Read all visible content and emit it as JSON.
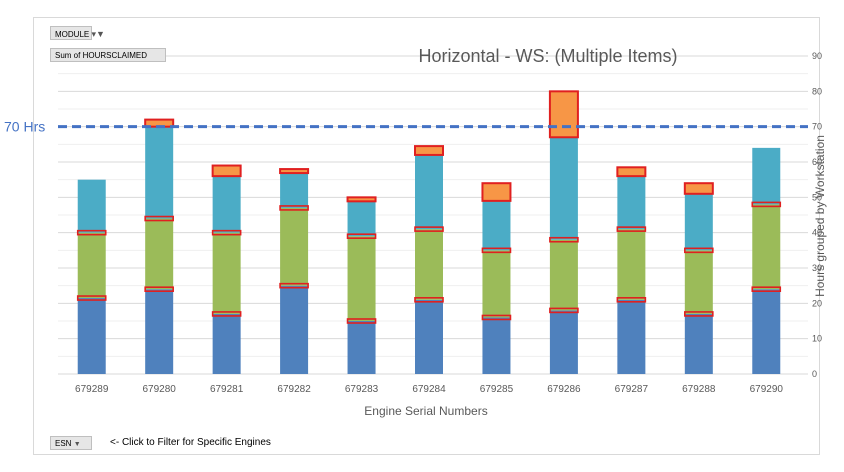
{
  "controls": {
    "module_button": "MODULE",
    "sum_field": "Sum of HOURSCLAIMED",
    "esn_button": "ESN",
    "filter_note": "<- Click to Filter for Specific Engines"
  },
  "chart_data": {
    "type": "bar",
    "stacked": true,
    "title": "Horizontal - WS: (Multiple Items)",
    "xlabel": "Engine Serial Numbers",
    "ylabel": "Hours grouped by Workstation",
    "ylim": [
      0,
      90
    ],
    "yticks": [
      0,
      10,
      20,
      30,
      40,
      50,
      60,
      70,
      80,
      90
    ],
    "y_axis_side": "right",
    "grid": true,
    "categories": [
      "679289",
      "679280",
      "679281",
      "679282",
      "679283",
      "679284",
      "679285",
      "679286",
      "679287",
      "679288",
      "679290"
    ],
    "series": [
      {
        "color": "#4f81bd",
        "values": [
          21.5,
          24,
          17,
          25,
          15,
          21,
          16,
          18,
          21,
          17,
          24
        ]
      },
      {
        "color": "#9bbb59",
        "values": [
          18.5,
          20,
          23,
          22,
          24,
          20,
          19,
          20,
          20,
          18,
          24
        ]
      },
      {
        "color": "#4bacc6",
        "values": [
          15,
          26,
          16,
          10,
          10,
          21,
          14,
          29,
          15,
          16,
          16
        ]
      },
      {
        "color": "#f79646",
        "values": [
          0,
          2,
          3,
          1,
          1,
          2.5,
          5,
          13,
          2.5,
          3,
          0
        ]
      }
    ],
    "red_outline_color": "#e02020",
    "reference_line": {
      "value": 70,
      "label": "70 Hrs",
      "color": "#4472c4",
      "style": "dashed"
    }
  }
}
